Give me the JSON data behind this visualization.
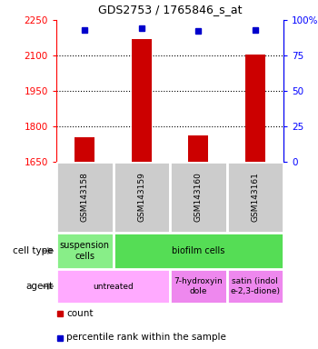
{
  "title": "GDS2753 / 1765846_s_at",
  "samples": [
    "GSM143158",
    "GSM143159",
    "GSM143160",
    "GSM143161"
  ],
  "counts": [
    1755,
    2170,
    1760,
    2105
  ],
  "percentiles": [
    93,
    94,
    92,
    93
  ],
  "ylim_left": [
    1650,
    2250
  ],
  "yticks_left": [
    1650,
    1800,
    1950,
    2100,
    2250
  ],
  "ylim_right": [
    0,
    100
  ],
  "yticks_right": [
    0,
    25,
    50,
    75,
    100
  ],
  "bar_color": "#cc0000",
  "dot_color": "#0000cc",
  "cell_type_row": [
    {
      "label": "suspension\ncells",
      "span": 1,
      "color": "#88ee88"
    },
    {
      "label": "biofilm cells",
      "span": 3,
      "color": "#55dd55"
    }
  ],
  "agent_row": [
    {
      "label": "untreated",
      "span": 2,
      "color": "#ffaaff"
    },
    {
      "label": "7-hydroxyin\ndole",
      "span": 1,
      "color": "#ee88ee"
    },
    {
      "label": "satin (indol\ne-2,3-dione)",
      "span": 1,
      "color": "#ee88ee"
    }
  ],
  "sample_box_color": "#cccccc",
  "legend_count_color": "#cc0000",
  "legend_pct_color": "#0000cc",
  "bar_width": 0.35
}
